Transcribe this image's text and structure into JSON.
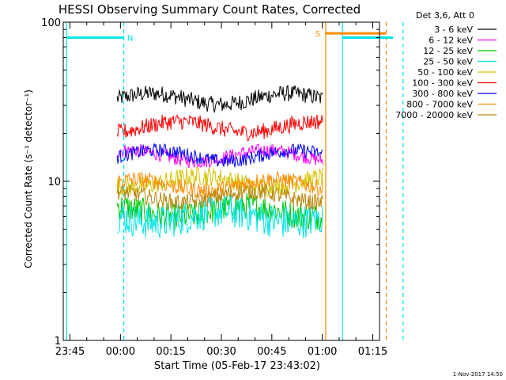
{
  "chart_data": {
    "type": "line",
    "title": "HESSI Observing Summary Count Rates, Corrected",
    "xlabel": "Start Time (05-Feb-17 23:43:02)",
    "ylabel": "Corrected Count Rate (s⁻¹ detector⁻¹)",
    "timestamp": "1-Nov-2017 14:50",
    "y_scale": "log",
    "ylim": [
      1,
      100
    ],
    "y_ticks": [
      {
        "value": 1,
        "label": "1"
      },
      {
        "value": 10,
        "label": "10"
      },
      {
        "value": 100,
        "label": "100"
      }
    ],
    "xlim_minutes_after_23_45": [
      -2,
      92
    ],
    "x_ticks": [
      {
        "minutes": 0,
        "label": "23:45"
      },
      {
        "minutes": 15,
        "label": "00:00"
      },
      {
        "minutes": 30,
        "label": "00:15"
      },
      {
        "minutes": 45,
        "label": "00:30"
      },
      {
        "minutes": 60,
        "label": "00:45"
      },
      {
        "minutes": 75,
        "label": "01:00"
      },
      {
        "minutes": 90,
        "label": "01:15"
      }
    ],
    "legend": {
      "header": "Det 3,6, Att 0",
      "placement": "top-right outside plot",
      "entries": [
        {
          "label": "3 - 6 keV",
          "color": "#000000"
        },
        {
          "label": "6 - 12 keV",
          "color": "#ff00ff"
        },
        {
          "label": "12 - 25 keV",
          "color": "#00c800"
        },
        {
          "label": "25 - 50 keV",
          "color": "#00e5e5"
        },
        {
          "label": "50 - 100 keV",
          "color": "#d4c400"
        },
        {
          "label": "100 - 300 keV",
          "color": "#ff0000"
        },
        {
          "label": "300 - 800 keV",
          "color": "#0000ff"
        },
        {
          "label": "800 - 7000 keV",
          "color": "#ff8c00"
        },
        {
          "label": "7000 - 20000 keV",
          "color": "#b8860b"
        }
      ]
    },
    "series": [
      {
        "name": "3 - 6 keV",
        "color": "#000000",
        "x_range": [
          14,
          75
        ],
        "level": 33,
        "noise": 0.12
      },
      {
        "name": "6 - 12 keV",
        "color": "#ff00ff",
        "x_range": [
          14,
          75
        ],
        "level": 14.5,
        "noise": 0.1
      },
      {
        "name": "12 - 25 keV",
        "color": "#00c800",
        "x_range": [
          14,
          75
        ],
        "level": 6.5,
        "noise": 0.2
      },
      {
        "name": "25 - 50 keV",
        "color": "#00e5e5",
        "x_range": [
          14,
          75
        ],
        "level": 6.0,
        "noise": 0.25
      },
      {
        "name": "50 - 100 keV",
        "color": "#d4c400",
        "x_range": [
          14,
          75
        ],
        "level": 10.0,
        "noise": 0.14
      },
      {
        "name": "100 - 300 keV",
        "color": "#ff0000",
        "x_range": [
          14,
          75
        ],
        "level": 22,
        "noise": 0.12
      },
      {
        "name": "300 - 800 keV",
        "color": "#0000ff",
        "x_range": [
          14,
          75
        ],
        "level": 14.5,
        "noise": 0.1
      },
      {
        "name": "800 - 7000 keV",
        "color": "#ff8c00",
        "x_range": [
          14,
          75
        ],
        "level": 9.5,
        "noise": 0.12
      },
      {
        "name": "7000 - 20000 keV",
        "color": "#b8860b",
        "x_range": [
          14,
          75
        ],
        "level": 8.0,
        "noise": 0.12
      }
    ],
    "flags": [
      {
        "label": "N",
        "color": "#00e5e5",
        "level": 80,
        "segments": [
          [
            -1,
            16
          ],
          [
            81,
            96
          ]
        ],
        "line_style": "dashed",
        "markers": [
          16,
          96
        ]
      },
      {
        "label": "S",
        "color": "#ff8c00",
        "level": 85,
        "segments": [
          [
            76,
            94
          ]
        ],
        "line_style": "dashed",
        "markers": [
          94
        ]
      }
    ],
    "vertical_lines": [
      {
        "minutes": -1,
        "color": "#00e5e5",
        "style": "solid"
      },
      {
        "minutes": 16,
        "color": "#00e5e5",
        "style": "dashed"
      },
      {
        "minutes": 76,
        "color": "#ff8c00",
        "style": "solid"
      },
      {
        "minutes": 81,
        "color": "#00e5e5",
        "style": "solid"
      },
      {
        "minutes": 94,
        "color": "#ff8c00",
        "style": "dashed"
      },
      {
        "minutes": 99,
        "color": "#00e5e5",
        "style": "dashed"
      }
    ],
    "grid": false
  }
}
